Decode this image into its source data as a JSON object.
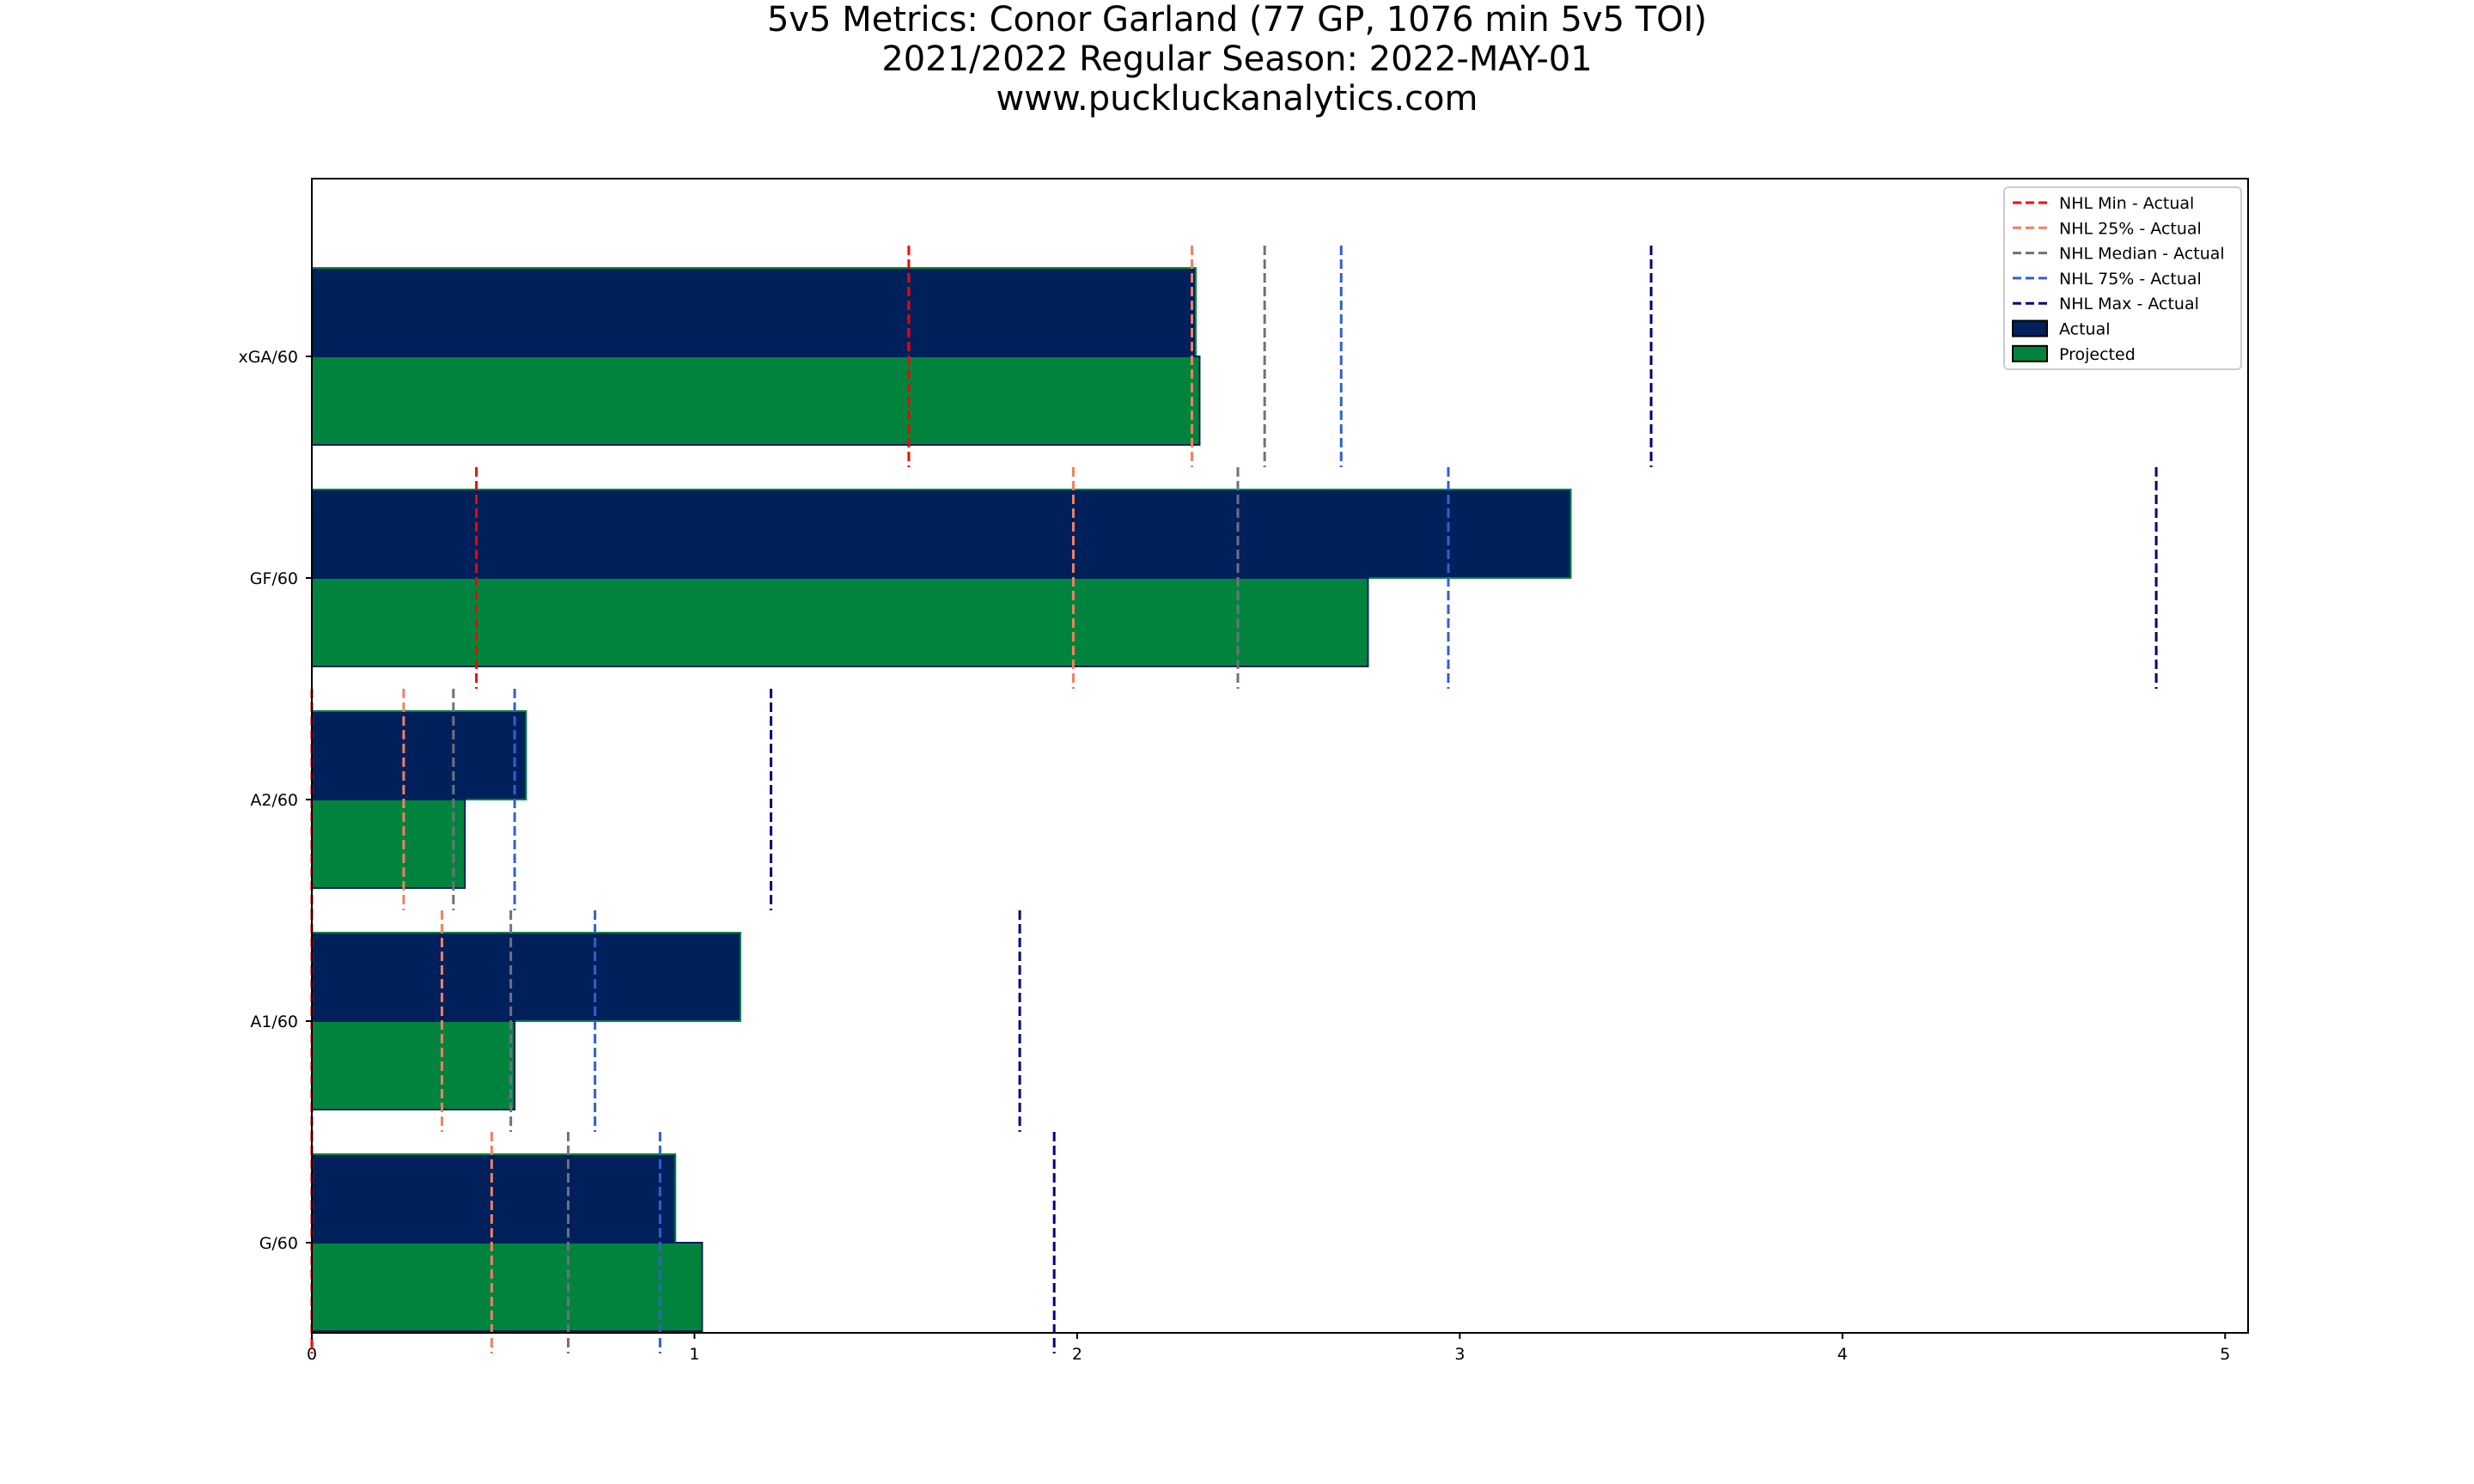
{
  "chart_data": {
    "type": "bar",
    "orientation": "horizontal",
    "title_lines": [
      "5v5 Metrics: Conor Garland (77 GP, 1076 min 5v5 TOI)",
      "2021/2022 Regular Season: 2022-MAY-01",
      "www.puckluckanalytics.com"
    ],
    "categories": [
      "xGA/60",
      "GF/60",
      "A2/60",
      "A1/60",
      "G/60"
    ],
    "xlim": [
      0,
      5.06
    ],
    "xticks": [
      0,
      1,
      2,
      3,
      4,
      5
    ],
    "xtick_labels": [
      "0",
      "1",
      "2",
      "3",
      "4",
      "5"
    ],
    "legend_position": "top-right",
    "series": [
      {
        "name": "Actual",
        "color": "#00205b",
        "values": [
          2.31,
          3.29,
          0.56,
          1.12,
          0.95
        ]
      },
      {
        "name": "Projected",
        "color": "#00843d",
        "values": [
          2.32,
          2.76,
          0.4,
          0.53,
          1.02
        ]
      }
    ],
    "reference_lines": [
      {
        "name": "NHL Min - Actual",
        "color": "#ff0000",
        "values": [
          1.56,
          0.43,
          0.0,
          0.0,
          0.0
        ]
      },
      {
        "name": "NHL 25% - Actual",
        "color": "#f08060",
        "values": [
          2.3,
          1.99,
          0.24,
          0.34,
          0.47
        ]
      },
      {
        "name": "NHL Median - Actual",
        "color": "#707080",
        "values": [
          2.49,
          2.42,
          0.37,
          0.52,
          0.67
        ]
      },
      {
        "name": "NHL 75% - Actual",
        "color": "#3060d0",
        "values": [
          2.69,
          2.97,
          0.53,
          0.74,
          0.91
        ]
      },
      {
        "name": "NHL Max - Actual",
        "color": "#000080",
        "values": [
          3.5,
          4.82,
          1.2,
          1.85,
          1.94
        ]
      }
    ]
  }
}
